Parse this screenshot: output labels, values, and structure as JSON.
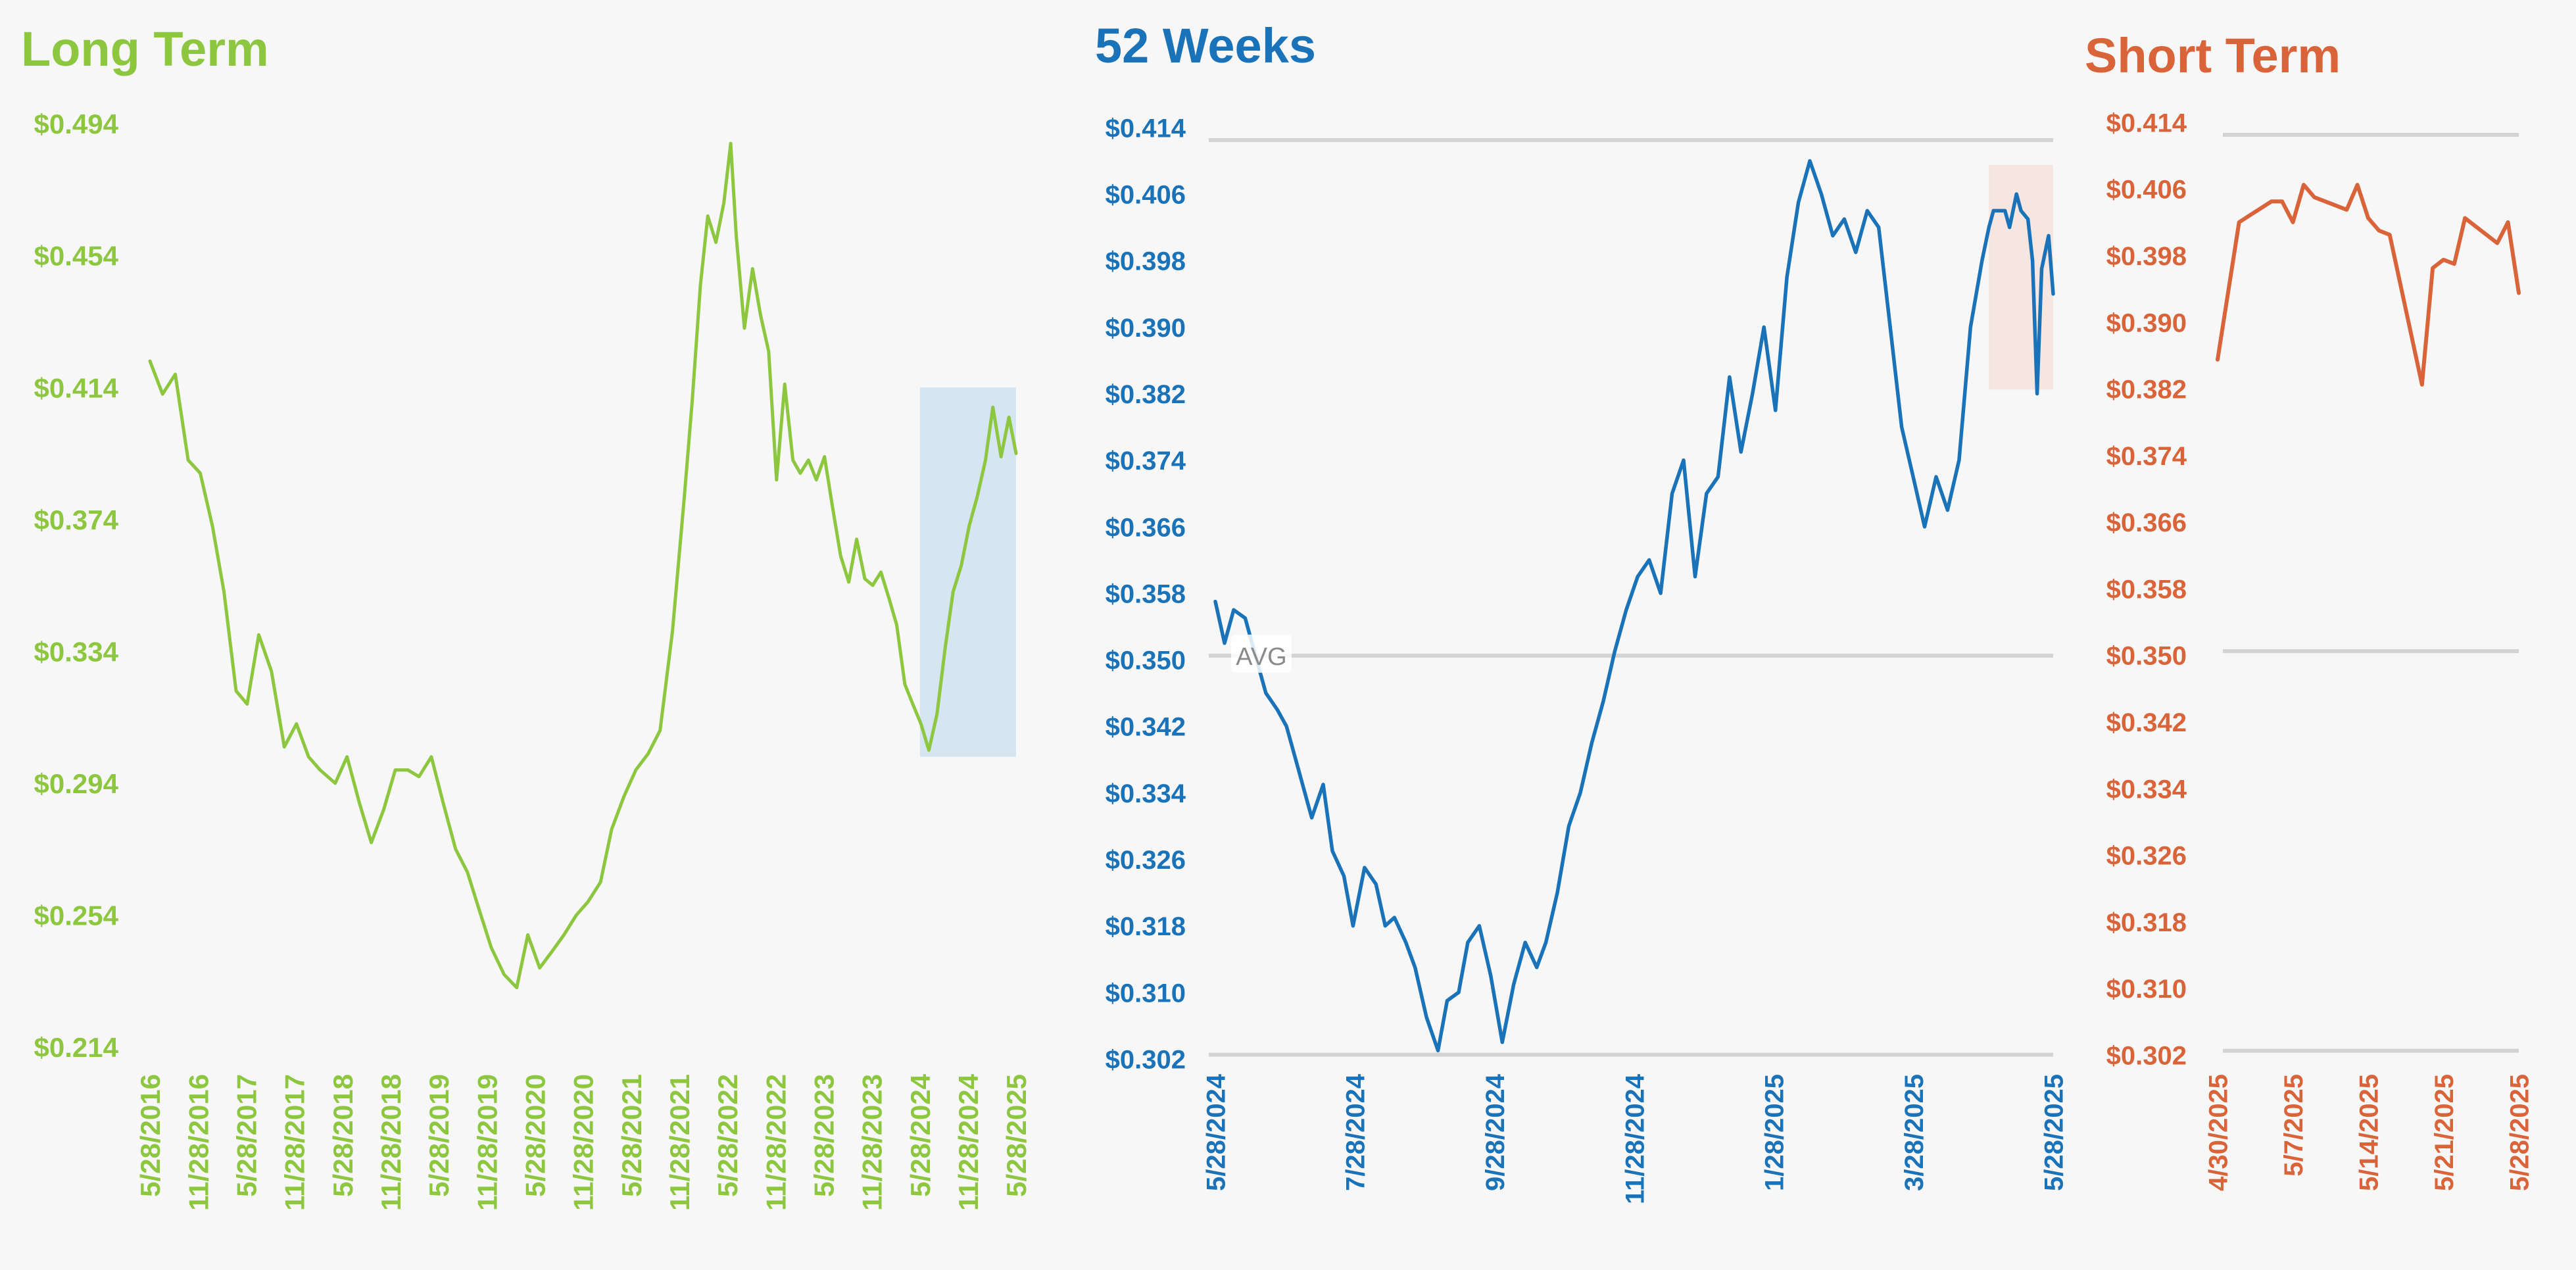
{
  "chart_data": [
    {
      "id": "long",
      "type": "line",
      "title": "Long Term",
      "color": "#8dc63f",
      "highlight_color": "#cfe2f0",
      "ylim": [
        0.214,
        0.494
      ],
      "y_ticks": [
        "$0.494",
        "$0.454",
        "$0.414",
        "$0.374",
        "$0.334",
        "$0.294",
        "$0.254",
        "$0.214"
      ],
      "x_ticks": [
        "5/28/2016",
        "11/28/2016",
        "5/28/2017",
        "11/28/2017",
        "5/28/2018",
        "11/28/2018",
        "5/28/2019",
        "11/28/2019",
        "5/28/2020",
        "11/28/2020",
        "5/28/2021",
        "11/28/2021",
        "5/28/2022",
        "11/28/2022",
        "5/28/2023",
        "11/28/2023",
        "5/28/2024",
        "11/28/2024",
        "5/28/2025"
      ],
      "x_range": [
        "2016-05-28",
        "2025-05-28"
      ],
      "highlight": {
        "x": [
          "2024-05-28",
          "2025-05-28"
        ],
        "y": [
          0.302,
          0.414
        ]
      },
      "series": [
        {
          "x": [
            "2016-05-28",
            "2016-07-15",
            "2016-09-01",
            "2016-10-20",
            "2016-12-05",
            "2017-01-20",
            "2017-03-05",
            "2017-04-20",
            "2017-06-01",
            "2017-07-15",
            "2017-09-01",
            "2017-10-20",
            "2017-12-05",
            "2018-01-20",
            "2018-03-05",
            "2018-05-01",
            "2018-06-15",
            "2018-08-01",
            "2018-09-15",
            "2018-11-01",
            "2018-12-15",
            "2019-02-01",
            "2019-03-15",
            "2019-05-01",
            "2019-06-15",
            "2019-08-01",
            "2019-09-15",
            "2019-11-01",
            "2019-12-15",
            "2020-02-01",
            "2020-03-20",
            "2020-05-01",
            "2020-06-15",
            "2020-08-01",
            "2020-09-15",
            "2020-11-01",
            "2020-12-15",
            "2021-02-01",
            "2021-03-15",
            "2021-05-01",
            "2021-06-15",
            "2021-08-01",
            "2021-09-15",
            "2021-11-01",
            "2021-12-15",
            "2022-01-15",
            "2022-02-15",
            "2022-03-15",
            "2022-04-15",
            "2022-05-15",
            "2022-06-10",
            "2022-07-01",
            "2022-08-01",
            "2022-09-01",
            "2022-10-01",
            "2022-11-01",
            "2022-12-01",
            "2023-01-01",
            "2023-02-01",
            "2023-03-01",
            "2023-04-01",
            "2023-05-01",
            "2023-06-01",
            "2023-07-01",
            "2023-08-01",
            "2023-09-01",
            "2023-10-01",
            "2023-11-01",
            "2023-12-01",
            "2024-01-01",
            "2024-02-01",
            "2024-03-01",
            "2024-04-01",
            "2024-05-01",
            "2024-06-01",
            "2024-07-01",
            "2024-08-01",
            "2024-09-01",
            "2024-10-01",
            "2024-11-01",
            "2024-12-01",
            "2025-01-01",
            "2025-02-01",
            "2025-03-01",
            "2025-04-01",
            "2025-05-01",
            "2025-05-28"
          ],
          "y": [
            0.422,
            0.412,
            0.418,
            0.392,
            0.388,
            0.372,
            0.352,
            0.322,
            0.318,
            0.339,
            0.328,
            0.305,
            0.312,
            0.302,
            0.298,
            0.294,
            0.302,
            0.288,
            0.276,
            0.286,
            0.298,
            0.298,
            0.296,
            0.302,
            0.288,
            0.274,
            0.267,
            0.255,
            0.244,
            0.236,
            0.232,
            0.248,
            0.238,
            0.243,
            0.248,
            0.254,
            0.258,
            0.264,
            0.28,
            0.29,
            0.298,
            0.303,
            0.31,
            0.34,
            0.38,
            0.41,
            0.445,
            0.466,
            0.458,
            0.47,
            0.488,
            0.46,
            0.432,
            0.45,
            0.436,
            0.425,
            0.386,
            0.415,
            0.392,
            0.388,
            0.392,
            0.386,
            0.393,
            0.378,
            0.363,
            0.355,
            0.368,
            0.356,
            0.354,
            0.358,
            0.35,
            0.342,
            0.324,
            0.318,
            0.312,
            0.304,
            0.315,
            0.335,
            0.352,
            0.36,
            0.372,
            0.381,
            0.392,
            0.408,
            0.393,
            0.405,
            0.394
          ]
        }
      ]
    },
    {
      "id": "weeks",
      "type": "line",
      "title": "52 Weeks",
      "color": "#1a73b8",
      "highlight_color": "#f4e3dd",
      "ylim": [
        0.302,
        0.414
      ],
      "y_ticks": [
        "$0.414",
        "$0.406",
        "$0.398",
        "$0.390",
        "$0.382",
        "$0.374",
        "$0.366",
        "$0.358",
        "$0.350",
        "$0.342",
        "$0.334",
        "$0.326",
        "$0.318",
        "$0.310",
        "$0.302"
      ],
      "x_ticks": [
        "5/28/2024",
        "7/28/2024",
        "9/28/2024",
        "11/28/2024",
        "1/28/2025",
        "3/28/2025",
        "5/28/2025"
      ],
      "x_range": [
        "2024-05-28",
        "2025-05-28"
      ],
      "avg_label": "AVG",
      "avg": 0.3505,
      "ref_lines": [
        0.4125,
        0.3505,
        0.3025
      ],
      "highlight": {
        "x": [
          "2025-04-30",
          "2025-05-28"
        ],
        "y": [
          0.3825,
          0.4095
        ]
      },
      "series": [
        {
          "x": [
            "2024-05-28",
            "2024-06-01",
            "2024-06-05",
            "2024-06-10",
            "2024-06-14",
            "2024-06-19",
            "2024-06-24",
            "2024-06-28",
            "2024-07-03",
            "2024-07-09",
            "2024-07-14",
            "2024-07-18",
            "2024-07-23",
            "2024-07-27",
            "2024-08-01",
            "2024-08-06",
            "2024-08-10",
            "2024-08-14",
            "2024-08-19",
            "2024-08-23",
            "2024-08-28",
            "2024-09-02",
            "2024-09-06",
            "2024-09-11",
            "2024-09-15",
            "2024-09-20",
            "2024-09-25",
            "2024-09-30",
            "2024-10-05",
            "2024-10-10",
            "2024-10-15",
            "2024-10-19",
            "2024-10-24",
            "2024-10-29",
            "2024-11-03",
            "2024-11-08",
            "2024-11-13",
            "2024-11-18",
            "2024-11-23",
            "2024-11-28",
            "2024-12-03",
            "2024-12-08",
            "2024-12-13",
            "2024-12-18",
            "2024-12-23",
            "2024-12-28",
            "2025-01-02",
            "2025-01-07",
            "2025-01-12",
            "2025-01-17",
            "2025-01-22",
            "2025-01-27",
            "2025-02-01",
            "2025-02-06",
            "2025-02-11",
            "2025-02-16",
            "2025-02-21",
            "2025-02-26",
            "2025-03-03",
            "2025-03-08",
            "2025-03-13",
            "2025-03-18",
            "2025-03-23",
            "2025-03-28",
            "2025-04-02",
            "2025-04-07",
            "2025-04-12",
            "2025-04-17",
            "2025-04-22",
            "2025-04-27",
            "2025-04-30",
            "2025-05-02",
            "2025-05-07",
            "2025-05-09",
            "2025-05-12",
            "2025-05-14",
            "2025-05-17",
            "2025-05-19",
            "2025-05-21",
            "2025-05-23",
            "2025-05-26",
            "2025-05-28"
          ],
          "y": [
            0.357,
            0.352,
            0.356,
            0.355,
            0.351,
            0.346,
            0.344,
            0.342,
            0.337,
            0.331,
            0.335,
            0.327,
            0.324,
            0.318,
            0.325,
            0.323,
            0.318,
            0.319,
            0.316,
            0.313,
            0.307,
            0.303,
            0.309,
            0.31,
            0.316,
            0.318,
            0.312,
            0.304,
            0.311,
            0.316,
            0.313,
            0.316,
            0.322,
            0.33,
            0.334,
            0.34,
            0.345,
            0.351,
            0.356,
            0.36,
            0.362,
            0.358,
            0.37,
            0.374,
            0.36,
            0.37,
            0.372,
            0.384,
            0.375,
            0.382,
            0.39,
            0.38,
            0.396,
            0.405,
            0.41,
            0.406,
            0.401,
            0.403,
            0.399,
            0.404,
            0.402,
            0.39,
            0.378,
            0.372,
            0.366,
            0.372,
            0.368,
            0.374,
            0.39,
            0.398,
            0.402,
            0.404,
            0.404,
            0.402,
            0.406,
            0.404,
            0.403,
            0.398,
            0.382,
            0.397,
            0.401,
            0.394
          ]
        }
      ]
    },
    {
      "id": "short",
      "type": "line",
      "title": "Short Term",
      "color": "#d9643a",
      "ylim": [
        0.302,
        0.414
      ],
      "y_ticks": [
        "$0.414",
        "$0.406",
        "$0.398",
        "$0.390",
        "$0.382",
        "$0.374",
        "$0.366",
        "$0.358",
        "$0.350",
        "$0.342",
        "$0.334",
        "$0.326",
        "$0.318",
        "$0.310",
        "$0.302"
      ],
      "x_ticks": [
        "4/30/2025",
        "5/7/2025",
        "5/14/2025",
        "5/21/2025",
        "5/28/2025"
      ],
      "x_range": [
        "2025-04-30",
        "2025-05-28"
      ],
      "ref_lines": [
        0.4125,
        0.3505,
        0.3025
      ],
      "series": [
        {
          "x": [
            "2025-04-30",
            "2025-05-02",
            "2025-05-05",
            "2025-05-06",
            "2025-05-07",
            "2025-05-08",
            "2025-05-09",
            "2025-05-12",
            "2025-05-13",
            "2025-05-14",
            "2025-05-15",
            "2025-05-16",
            "2025-05-19",
            "2025-05-20",
            "2025-05-21",
            "2025-05-22",
            "2025-05-23",
            "2025-05-26",
            "2025-05-27",
            "2025-05-28"
          ],
          "y": [
            0.3855,
            0.402,
            0.4045,
            0.4045,
            0.402,
            0.4065,
            0.405,
            0.4035,
            0.4065,
            0.4025,
            0.401,
            0.4005,
            0.3825,
            0.3965,
            0.3975,
            0.397,
            0.4025,
            0.3995,
            0.402,
            0.3935
          ]
        }
      ]
    }
  ]
}
